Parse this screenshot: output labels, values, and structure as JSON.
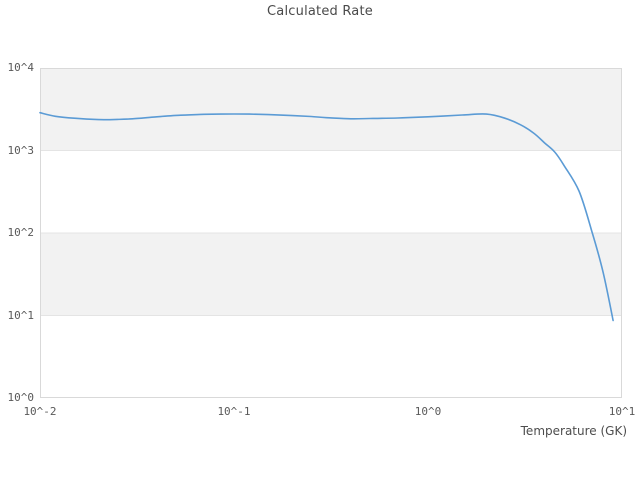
{
  "title": "Calculated Rate",
  "colors": {
    "line": "#5b9bd5",
    "band": "#f2f2f2",
    "grid": "#e4e4e4",
    "border": "#d9d9d9",
    "tick_text": "#595959",
    "title_text": "#4a4a4a"
  },
  "chart_data": {
    "type": "line",
    "title": "Calculated Rate",
    "xlabel": "Temperature (GK)",
    "ylabel": "",
    "x_scale": "log",
    "y_scale": "log",
    "xlim": [
      0.01,
      10
    ],
    "ylim": [
      1,
      10000
    ],
    "x_ticks": [
      0.01,
      0.1,
      1,
      10
    ],
    "x_tick_labels": [
      "10^-2",
      "10^-1",
      "10^0",
      "10^1"
    ],
    "y_ticks": [
      1,
      10,
      100,
      1000,
      10000
    ],
    "y_tick_labels": [
      "10^0",
      "10^1",
      "10^2",
      "10^3",
      "10^4"
    ],
    "grid": "horizontal-only",
    "legend": "none",
    "alternating_bands": true,
    "series": [
      {
        "name": "Calculated Rate",
        "color": "#5b9bd5",
        "x": [
          0.01,
          0.012,
          0.015,
          0.02,
          0.025,
          0.03,
          0.04,
          0.05,
          0.07,
          0.085,
          0.1,
          0.12,
          0.15,
          0.2,
          0.25,
          0.3,
          0.4,
          0.5,
          0.7,
          1.0,
          1.5,
          2.0,
          2.5,
          3.0,
          3.5,
          4.0,
          4.5,
          5.0,
          6.0,
          7.0,
          8.0,
          9.0
        ],
        "y": [
          2870,
          2600,
          2460,
          2370,
          2380,
          2420,
          2560,
          2660,
          2745,
          2765,
          2770,
          2760,
          2720,
          2650,
          2580,
          2500,
          2425,
          2440,
          2475,
          2560,
          2690,
          2765,
          2455,
          2050,
          1630,
          1230,
          960,
          670,
          323,
          104,
          33,
          8.7
        ]
      }
    ]
  }
}
